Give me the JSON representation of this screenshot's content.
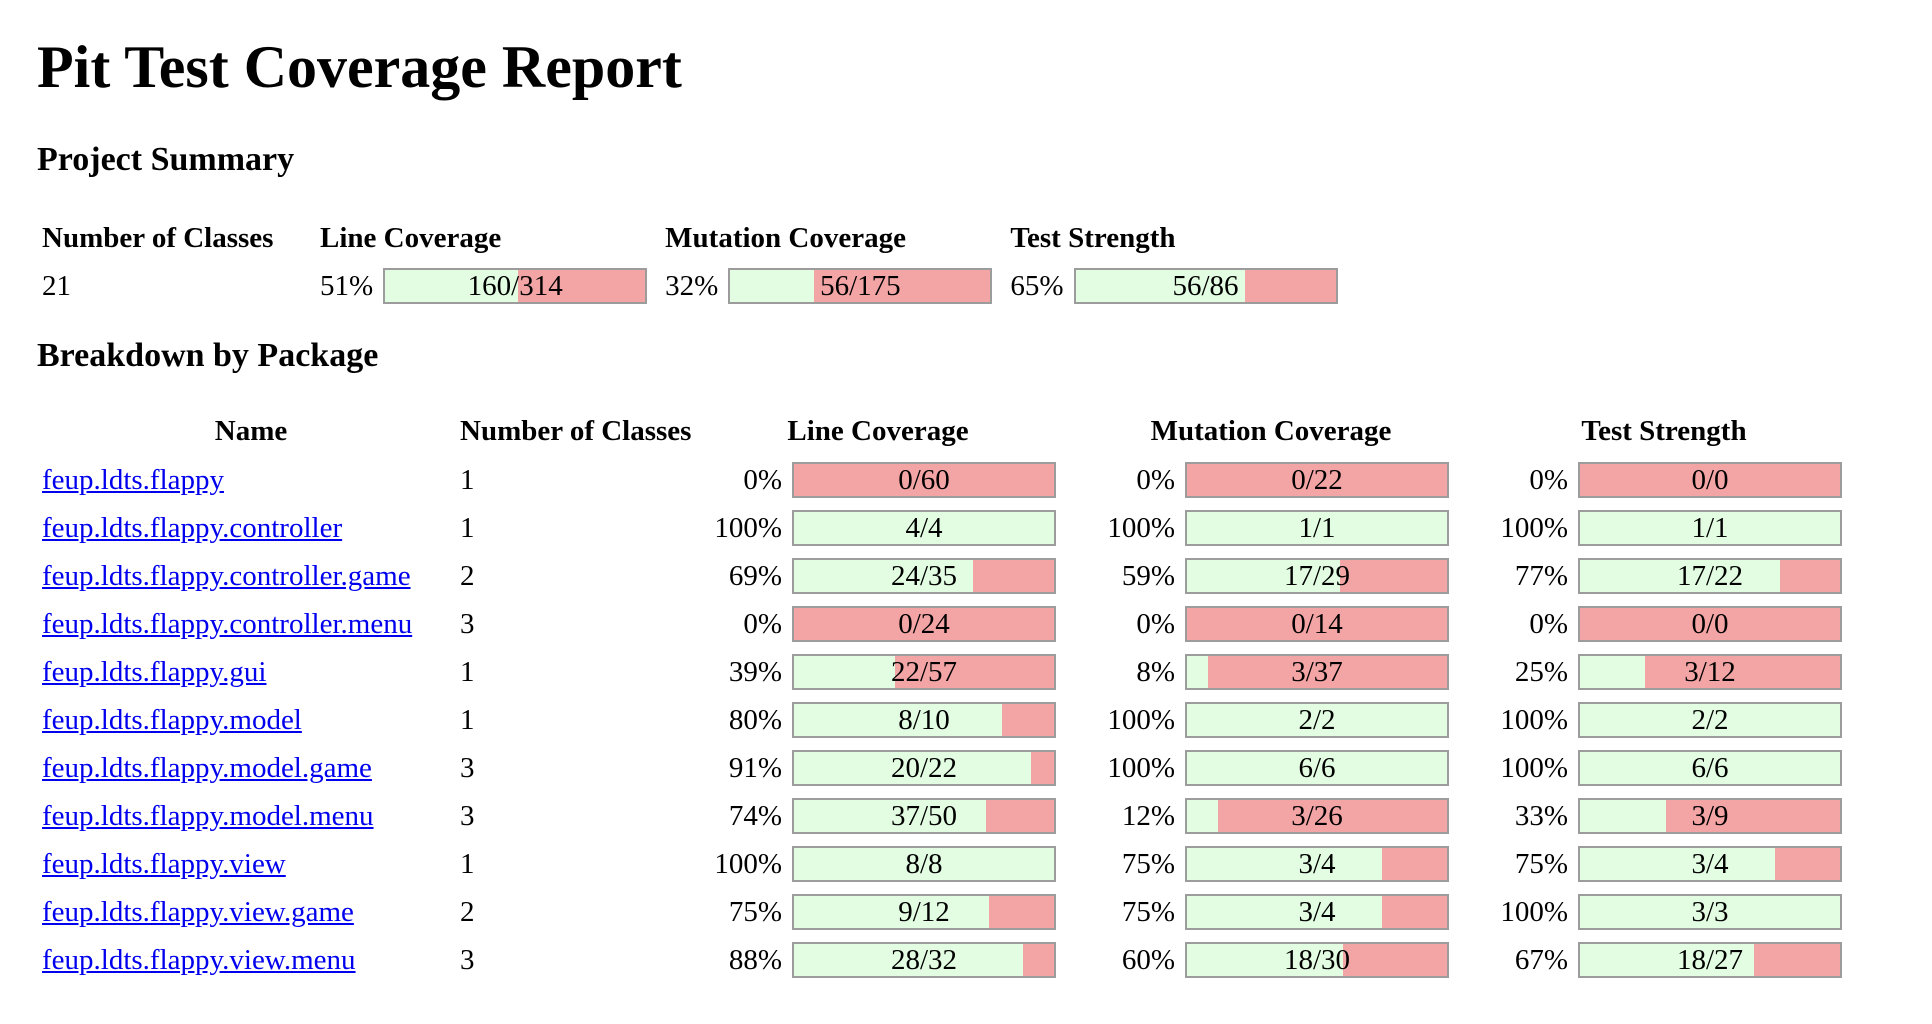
{
  "title": "Pit Test Coverage Report",
  "summary": {
    "heading": "Project Summary",
    "headers": {
      "classes": "Number of Classes",
      "line": "Line Coverage",
      "mutation": "Mutation Coverage",
      "strength": "Test Strength"
    },
    "classes": "21",
    "line": {
      "pct": "51%",
      "text": "160/314",
      "fraction": 0.51
    },
    "mutation": {
      "pct": "32%",
      "text": "56/175",
      "fraction": 0.32
    },
    "strength": {
      "pct": "65%",
      "text": "56/86",
      "fraction": 0.65
    }
  },
  "breakdown": {
    "heading": "Breakdown by Package",
    "headers": {
      "name": "Name",
      "classes": "Number of Classes",
      "line": "Line Coverage",
      "mutation": "Mutation Coverage",
      "strength": "Test Strength"
    },
    "rows": [
      {
        "name": "feup.ldts.flappy",
        "classes": "1",
        "line": {
          "pct": "0%",
          "text": "0/60",
          "fraction": 0
        },
        "mutation": {
          "pct": "0%",
          "text": "0/22",
          "fraction": 0
        },
        "strength": {
          "pct": "0%",
          "text": "0/0",
          "fraction": 0
        }
      },
      {
        "name": "feup.ldts.flappy.controller",
        "classes": "1",
        "line": {
          "pct": "100%",
          "text": "4/4",
          "fraction": 1
        },
        "mutation": {
          "pct": "100%",
          "text": "1/1",
          "fraction": 1
        },
        "strength": {
          "pct": "100%",
          "text": "1/1",
          "fraction": 1
        }
      },
      {
        "name": "feup.ldts.flappy.controller.game",
        "classes": "2",
        "line": {
          "pct": "69%",
          "text": "24/35",
          "fraction": 0.69
        },
        "mutation": {
          "pct": "59%",
          "text": "17/29",
          "fraction": 0.59
        },
        "strength": {
          "pct": "77%",
          "text": "17/22",
          "fraction": 0.77
        }
      },
      {
        "name": "feup.ldts.flappy.controller.menu",
        "classes": "3",
        "line": {
          "pct": "0%",
          "text": "0/24",
          "fraction": 0
        },
        "mutation": {
          "pct": "0%",
          "text": "0/14",
          "fraction": 0
        },
        "strength": {
          "pct": "0%",
          "text": "0/0",
          "fraction": 0
        }
      },
      {
        "name": "feup.ldts.flappy.gui",
        "classes": "1",
        "line": {
          "pct": "39%",
          "text": "22/57",
          "fraction": 0.39
        },
        "mutation": {
          "pct": "8%",
          "text": "3/37",
          "fraction": 0.08
        },
        "strength": {
          "pct": "25%",
          "text": "3/12",
          "fraction": 0.25
        }
      },
      {
        "name": "feup.ldts.flappy.model",
        "classes": "1",
        "line": {
          "pct": "80%",
          "text": "8/10",
          "fraction": 0.8
        },
        "mutation": {
          "pct": "100%",
          "text": "2/2",
          "fraction": 1
        },
        "strength": {
          "pct": "100%",
          "text": "2/2",
          "fraction": 1
        }
      },
      {
        "name": "feup.ldts.flappy.model.game",
        "classes": "3",
        "line": {
          "pct": "91%",
          "text": "20/22",
          "fraction": 0.91
        },
        "mutation": {
          "pct": "100%",
          "text": "6/6",
          "fraction": 1
        },
        "strength": {
          "pct": "100%",
          "text": "6/6",
          "fraction": 1
        }
      },
      {
        "name": "feup.ldts.flappy.model.menu",
        "classes": "3",
        "line": {
          "pct": "74%",
          "text": "37/50",
          "fraction": 0.74
        },
        "mutation": {
          "pct": "12%",
          "text": "3/26",
          "fraction": 0.12
        },
        "strength": {
          "pct": "33%",
          "text": "3/9",
          "fraction": 0.33
        }
      },
      {
        "name": "feup.ldts.flappy.view",
        "classes": "1",
        "line": {
          "pct": "100%",
          "text": "8/8",
          "fraction": 1
        },
        "mutation": {
          "pct": "75%",
          "text": "3/4",
          "fraction": 0.75
        },
        "strength": {
          "pct": "75%",
          "text": "3/4",
          "fraction": 0.75
        }
      },
      {
        "name": "feup.ldts.flappy.view.game",
        "classes": "2",
        "line": {
          "pct": "75%",
          "text": "9/12",
          "fraction": 0.75
        },
        "mutation": {
          "pct": "75%",
          "text": "3/4",
          "fraction": 0.75
        },
        "strength": {
          "pct": "100%",
          "text": "3/3",
          "fraction": 1
        }
      },
      {
        "name": "feup.ldts.flappy.view.menu",
        "classes": "3",
        "line": {
          "pct": "88%",
          "text": "28/32",
          "fraction": 0.88
        },
        "mutation": {
          "pct": "60%",
          "text": "18/30",
          "fraction": 0.6
        },
        "strength": {
          "pct": "67%",
          "text": "18/27",
          "fraction": 0.67
        }
      }
    ]
  },
  "colors": {
    "covered": "#e2fde2",
    "uncovered": "#f3a5a5",
    "link": "#0000ee"
  }
}
